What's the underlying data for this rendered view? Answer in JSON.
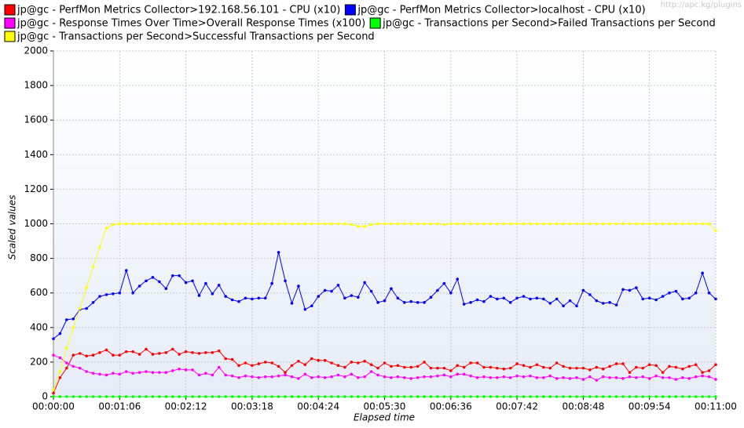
{
  "chart_data": {
    "type": "line",
    "watermark": "http://apc.kg/plugins",
    "xlabel": "Elapsed time",
    "ylabel": "Scaled values",
    "grid": true,
    "xlim": [
      0,
      660
    ],
    "xticks": [
      {
        "value": 0,
        "label": "00:00:00"
      },
      {
        "value": 66,
        "label": "00:01:06"
      },
      {
        "value": 132,
        "label": "00:02:12"
      },
      {
        "value": 198,
        "label": "00:03:18"
      },
      {
        "value": 264,
        "label": "00:04:24"
      },
      {
        "value": 330,
        "label": "00:05:30"
      },
      {
        "value": 396,
        "label": "00:06:36"
      },
      {
        "value": 462,
        "label": "00:07:42"
      },
      {
        "value": 528,
        "label": "00:08:48"
      },
      {
        "value": 594,
        "label": "00:09:54"
      },
      {
        "value": 660,
        "label": "00:11:00"
      }
    ],
    "ylim": [
      0,
      2000
    ],
    "yticks": [
      0,
      200,
      400,
      600,
      800,
      1000,
      1200,
      1400,
      1600,
      1800,
      2000
    ],
    "x": [
      0,
      6.6,
      13.2,
      19.8,
      26.4,
      33,
      39.6,
      46.2,
      52.8,
      59.4,
      66,
      72.6,
      79.2,
      85.8,
      92.4,
      99,
      105.6,
      112.2,
      118.8,
      125.4,
      132,
      138.6,
      145.2,
      151.8,
      158.4,
      165,
      171.6,
      178.2,
      184.8,
      191.4,
      198,
      204.6,
      211.2,
      217.8,
      224.4,
      231,
      237.6,
      244.2,
      250.8,
      257.4,
      264,
      270.6,
      277.2,
      283.8,
      290.4,
      297,
      303.6,
      310.2,
      316.8,
      323.4,
      330,
      336.6,
      343.2,
      349.8,
      356.4,
      363,
      369.6,
      376.2,
      382.8,
      389.4,
      396,
      402.6,
      409.2,
      415.8,
      422.4,
      429,
      435.6,
      442.2,
      448.8,
      455.4,
      462,
      468.6,
      475.2,
      481.8,
      488.4,
      495,
      501.6,
      508.2,
      514.8,
      521.4,
      528,
      534.6,
      541.2,
      547.8,
      554.4,
      561,
      567.6,
      574.2,
      580.8,
      587.4,
      594,
      600.6,
      607.2,
      613.8,
      620.4,
      627,
      633.6,
      640.2,
      646.8,
      653.4,
      660
    ],
    "series": [
      {
        "name": "jp@gc - PerfMon Metrics Collector>192.168.56.101 - CPU (x10)",
        "color": "#ff0000",
        "values": [
          20,
          110,
          165,
          240,
          250,
          235,
          240,
          255,
          270,
          240,
          240,
          260,
          260,
          245,
          275,
          245,
          250,
          255,
          275,
          245,
          260,
          255,
          250,
          255,
          255,
          265,
          220,
          215,
          180,
          195,
          180,
          190,
          200,
          195,
          175,
          140,
          180,
          205,
          185,
          220,
          210,
          210,
          195,
          180,
          170,
          200,
          195,
          205,
          185,
          165,
          195,
          175,
          180,
          170,
          170,
          175,
          200,
          165,
          165,
          165,
          150,
          180,
          170,
          195,
          195,
          170,
          170,
          165,
          160,
          165,
          190,
          180,
          170,
          185,
          170,
          165,
          195,
          175,
          165,
          165,
          165,
          155,
          170,
          160,
          175,
          190,
          190,
          140,
          170,
          165,
          185,
          180,
          140,
          175,
          170,
          160,
          175,
          185,
          140,
          150,
          185
        ]
      },
      {
        "name": "jp@gc - PerfMon Metrics Collector>localhost - CPU (x10)",
        "color": "#0000ff",
        "values": [
          335,
          365,
          445,
          450,
          505,
          510,
          545,
          580,
          590,
          595,
          600,
          730,
          600,
          640,
          670,
          690,
          665,
          625,
          700,
          700,
          660,
          670,
          585,
          655,
          595,
          645,
          580,
          560,
          550,
          570,
          565,
          570,
          570,
          655,
          835,
          670,
          540,
          640,
          505,
          525,
          580,
          615,
          610,
          645,
          570,
          585,
          575,
          660,
          610,
          545,
          555,
          625,
          570,
          545,
          550,
          545,
          545,
          575,
          615,
          655,
          600,
          680,
          535,
          545,
          560,
          550,
          580,
          565,
          570,
          545,
          570,
          580,
          565,
          570,
          565,
          540,
          565,
          525,
          555,
          525,
          615,
          590,
          555,
          540,
          545,
          530,
          620,
          615,
          630,
          565,
          570,
          560,
          580,
          600,
          610,
          565,
          570,
          600,
          715,
          600,
          565
        ]
      },
      {
        "name": "jp@gc - Response Times Over Time>Overall Response Times (x100)",
        "color": "#ff00ff",
        "values": [
          240,
          225,
          195,
          175,
          165,
          145,
          135,
          130,
          125,
          135,
          130,
          145,
          135,
          140,
          145,
          140,
          140,
          140,
          150,
          160,
          155,
          155,
          125,
          135,
          125,
          170,
          125,
          120,
          110,
          120,
          115,
          110,
          115,
          115,
          120,
          125,
          115,
          105,
          130,
          110,
          115,
          110,
          115,
          125,
          115,
          130,
          110,
          115,
          145,
          125,
          115,
          110,
          115,
          110,
          105,
          110,
          115,
          115,
          120,
          125,
          115,
          130,
          130,
          120,
          110,
          115,
          110,
          110,
          115,
          110,
          120,
          115,
          120,
          110,
          110,
          120,
          105,
          110,
          105,
          110,
          100,
          115,
          95,
          115,
          110,
          110,
          105,
          115,
          110,
          115,
          105,
          120,
          110,
          110,
          100,
          110,
          105,
          115,
          120,
          115,
          100
        ]
      },
      {
        "name": "jp@gc - Transactions per Second>Failed Transactions per Second",
        "color": "#00ff00",
        "values": [
          0,
          0,
          0,
          0,
          0,
          0,
          0,
          0,
          0,
          0,
          0,
          0,
          0,
          0,
          0,
          0,
          0,
          0,
          0,
          0,
          0,
          0,
          0,
          0,
          0,
          0,
          0,
          0,
          0,
          0,
          0,
          0,
          0,
          0,
          0,
          0,
          0,
          0,
          0,
          0,
          0,
          0,
          0,
          0,
          0,
          0,
          0,
          0,
          0,
          0,
          0,
          0,
          0,
          0,
          0,
          0,
          0,
          0,
          0,
          0,
          0,
          0,
          0,
          0,
          0,
          0,
          0,
          0,
          0,
          0,
          0,
          0,
          0,
          0,
          0,
          0,
          0,
          0,
          0,
          0,
          0,
          0,
          0,
          0,
          0,
          0,
          0,
          0,
          0,
          0,
          0,
          0,
          0,
          0,
          0,
          0,
          0,
          0,
          0,
          0,
          0
        ]
      },
      {
        "name": "jp@gc - Transactions per Second>Successful Transactions per Second",
        "color": "#ffff00",
        "values": [
          40,
          145,
          280,
          400,
          510,
          630,
          750,
          865,
          975,
          995,
          1000,
          1000,
          1000,
          1000,
          1000,
          1000,
          1000,
          1000,
          1000,
          1000,
          1000,
          1000,
          1000,
          1000,
          1000,
          1000,
          1000,
          1000,
          1000,
          1000,
          1000,
          1000,
          1000,
          1000,
          1000,
          1000,
          1000,
          1000,
          1000,
          1000,
          1000,
          1000,
          1000,
          1000,
          1000,
          995,
          985,
          985,
          995,
          1000,
          1000,
          1000,
          1000,
          1000,
          1000,
          1000,
          1000,
          1000,
          1000,
          995,
          1000,
          1000,
          1000,
          1000,
          1000,
          1000,
          1000,
          1000,
          1000,
          1000,
          1000,
          1000,
          1000,
          1000,
          1000,
          1000,
          1000,
          1000,
          1000,
          1000,
          1000,
          1000,
          1000,
          1000,
          1000,
          1000,
          1000,
          1000,
          1000,
          1000,
          1000,
          1000,
          1000,
          1000,
          1000,
          1000,
          1000,
          1000,
          1000,
          1000,
          960
        ]
      }
    ]
  }
}
